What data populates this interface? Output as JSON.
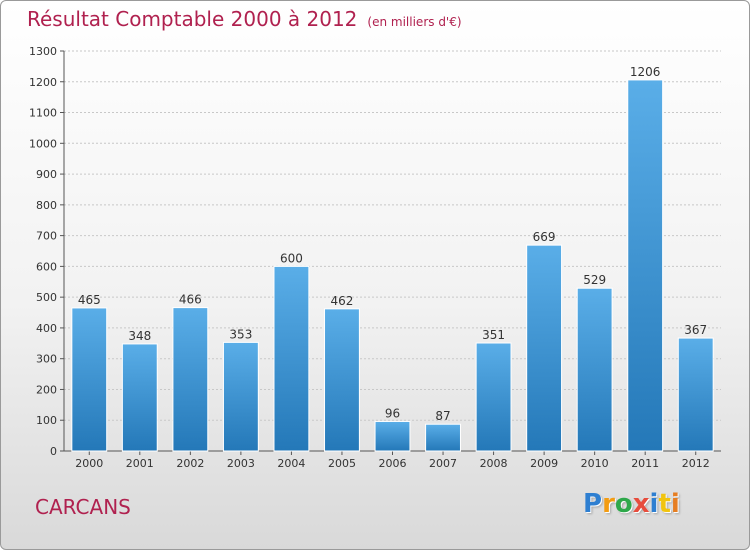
{
  "chart_data": {
    "type": "bar",
    "title": "Résultat Comptable 2000 à 2012",
    "subtitle": "(en milliers d'€)",
    "categories": [
      "2000",
      "2001",
      "2002",
      "2003",
      "2004",
      "2005",
      "2006",
      "2007",
      "2008",
      "2009",
      "2010",
      "2011",
      "2012"
    ],
    "values": [
      465,
      348,
      466,
      353,
      600,
      462,
      96,
      87,
      351,
      669,
      529,
      1206,
      367
    ],
    "ylim": [
      0,
      1300
    ],
    "yticks": [
      0,
      100,
      200,
      300,
      400,
      500,
      600,
      700,
      800,
      900,
      1000,
      1100,
      1200,
      1300
    ],
    "grid": true,
    "legend": "none",
    "bar_color": "#3d95d6"
  },
  "commune": "CARCANS",
  "logo": {
    "letters": [
      "P",
      "r",
      "o",
      "x",
      "i",
      "t",
      "i"
    ],
    "colors": [
      "#2e7fd1",
      "#f39c12",
      "#2ea84a",
      "#e74c3c",
      "#2e7fd1",
      "#f1c40f",
      "#e67e22"
    ]
  }
}
